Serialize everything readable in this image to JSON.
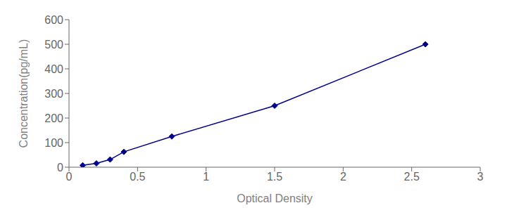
{
  "chart_data": {
    "type": "line",
    "x": [
      0.1,
      0.2,
      0.3,
      0.4,
      0.75,
      1.5,
      2.6
    ],
    "values": [
      7.8,
      15.6,
      31.2,
      62.5,
      125,
      250,
      500
    ],
    "color": "#00008B",
    "marker": "diamond",
    "line_style": "solid",
    "xlabel": "Optical Density",
    "ylabel": "Concentration(pg/mL)",
    "xlim": [
      0,
      3
    ],
    "ylim": [
      0,
      600
    ],
    "xticks": [
      0,
      0.5,
      1,
      1.5,
      2,
      2.5,
      3
    ],
    "yticks": [
      0,
      100,
      200,
      300,
      400,
      500,
      600
    ],
    "grid": false
  }
}
